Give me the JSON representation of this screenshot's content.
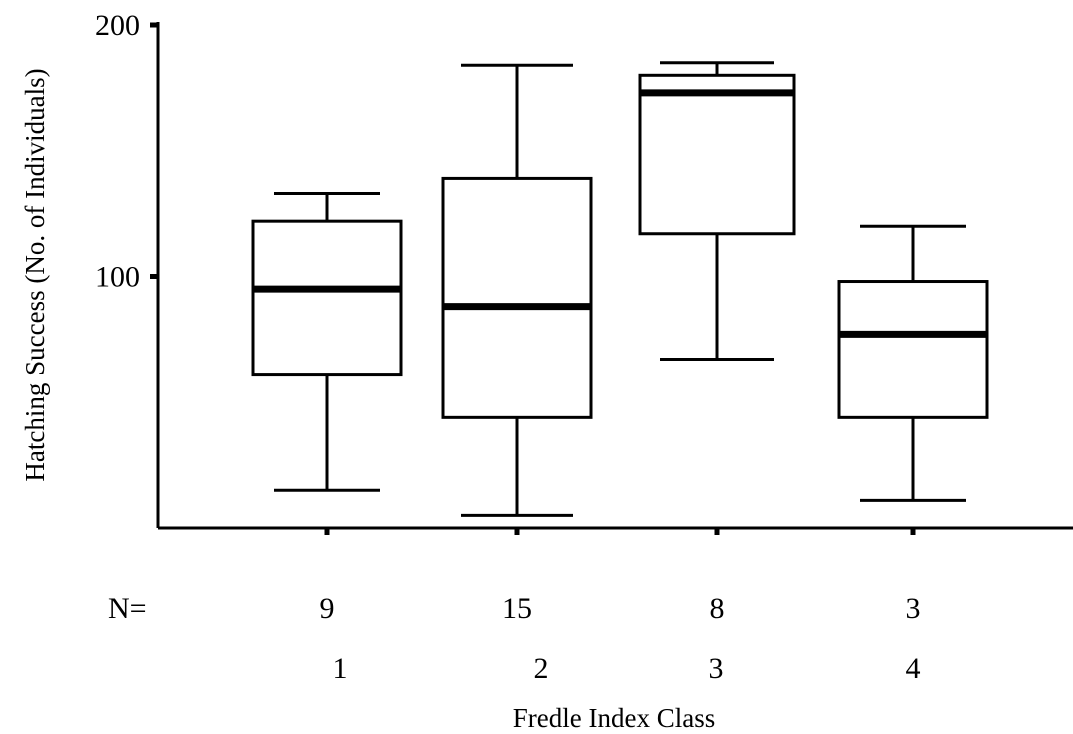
{
  "chart_data": {
    "type": "box",
    "xlabel": "Fredle Index Class",
    "ylabel": "Hatching Success (No. of Individuals)",
    "ylim": [
      0,
      200
    ],
    "yticks": [
      100,
      200
    ],
    "n_prefix": "N=",
    "categories": [
      "1",
      "2",
      "3",
      "4"
    ],
    "n": [
      "9",
      "15",
      "8",
      "3"
    ],
    "boxes": [
      {
        "min": 15,
        "q1": 61,
        "median": 95,
        "q3": 122,
        "max": 133
      },
      {
        "min": 5,
        "q1": 44,
        "median": 88,
        "q3": 139,
        "max": 184
      },
      {
        "min": 67,
        "q1": 117,
        "median": 173,
        "q3": 180,
        "max": 185
      },
      {
        "min": 11,
        "q1": 44,
        "median": 77,
        "q3": 98,
        "max": 120
      }
    ]
  }
}
